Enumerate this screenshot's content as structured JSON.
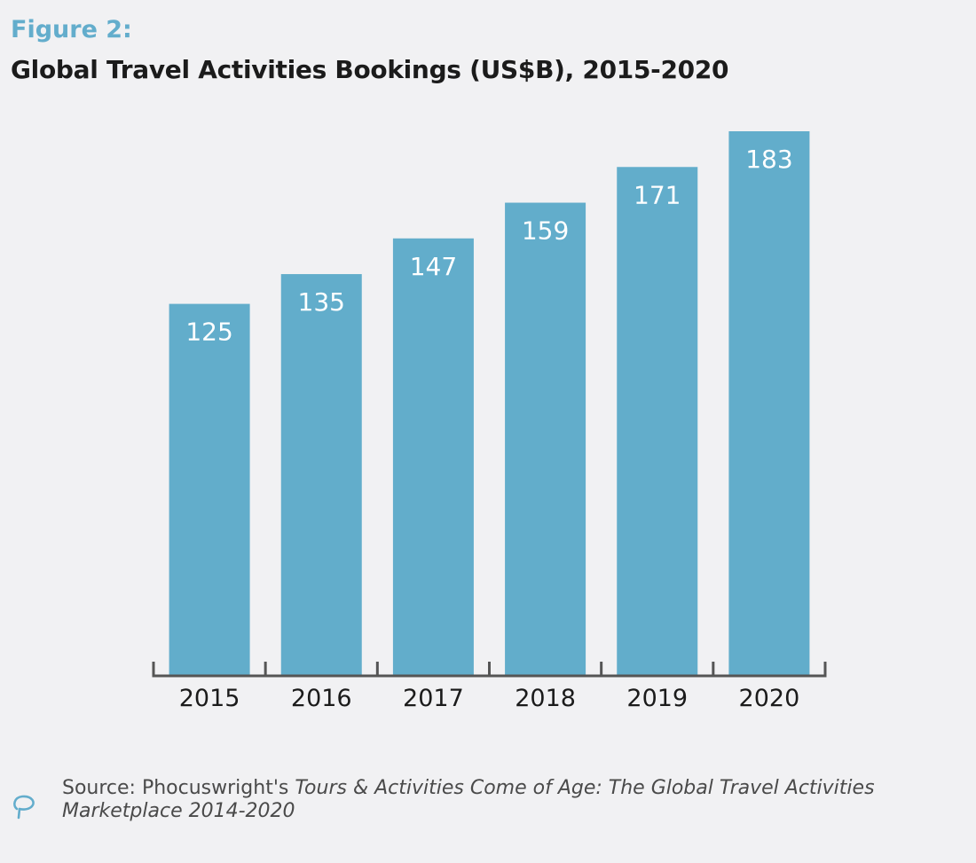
{
  "figure_label": "Figure 2:",
  "colors": {
    "bar": "#62adcb",
    "accent": "#63adcc",
    "axis": "#555555",
    "bar_label": "#ffffff",
    "tick_label": "#1b1b1b"
  },
  "source": {
    "prefix": "Source: Phocuswright's ",
    "italic": "Tours & Activities Come of Age: The Global Travel Activities Marketplace 2014-2020",
    "icon": "speech-bubble-icon"
  },
  "chart_data": {
    "type": "bar",
    "title": "Global Travel Activities Bookings (US$B), 2015-2020",
    "categories": [
      "2015",
      "2016",
      "2017",
      "2018",
      "2019",
      "2020"
    ],
    "values": [
      125,
      135,
      147,
      159,
      171,
      183
    ],
    "data_labels": [
      "125",
      "135",
      "147",
      "159",
      "171",
      "183"
    ],
    "xlabel": "",
    "ylabel": "",
    "ylim": [
      0,
      183
    ],
    "grid": false,
    "legend": "none"
  }
}
